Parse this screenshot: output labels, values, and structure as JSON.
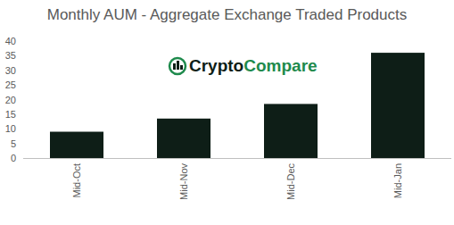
{
  "chart_data": {
    "type": "bar",
    "title": "Monthly AUM - Aggregate Exchange Traded Products",
    "annotations": [
      "CryptoCompare"
    ],
    "categories": [
      "Mid-Oct",
      "Mid-Nov",
      "Mid-Dec",
      "Mid-Jan"
    ],
    "values": [
      9,
      13.5,
      18.5,
      36
    ],
    "color": "#0e1e17",
    "ylim": [
      0,
      40
    ],
    "yticks": [
      0,
      5,
      10,
      15,
      20,
      25,
      30,
      35,
      40
    ],
    "grid": false
  }
}
